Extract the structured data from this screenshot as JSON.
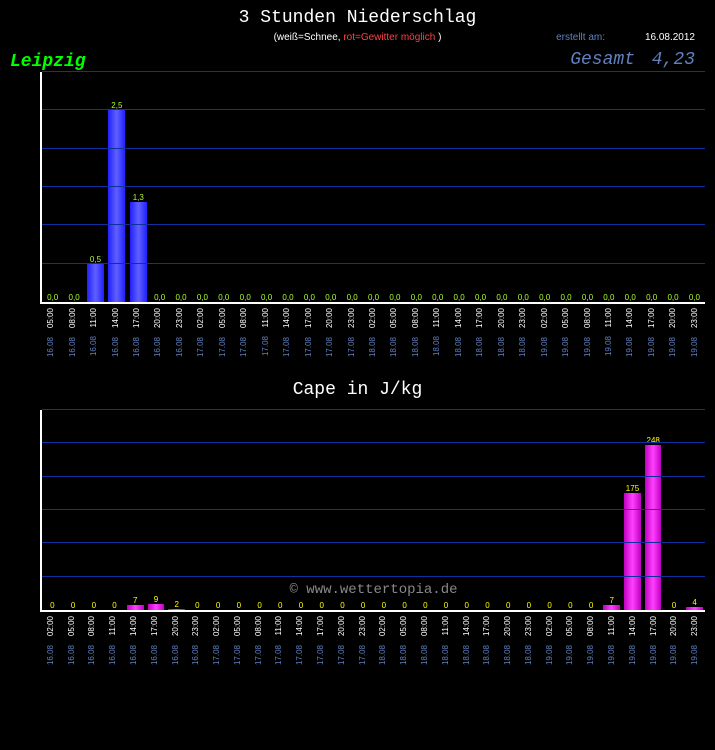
{
  "header": {
    "title": "3 Stunden Niederschlag",
    "subtitle_white": "(weiß=Schnee,",
    "subtitle_red": "rot=Gewitter möglich",
    "subtitle_close": ")",
    "location": "Leipzig",
    "created_label": "erstellt am:",
    "created_date": "16.08.2012",
    "gesamt_label": "Gesamt",
    "gesamt_value": "4,23"
  },
  "chart1": {
    "type": "bar",
    "ylim": [
      0,
      3.0
    ],
    "ytick_step": 0.5,
    "yticks": [
      "0,00",
      "0,50",
      "1,00",
      "1,50",
      "2,00",
      "2,50",
      "3,00"
    ],
    "grid_color": "#1030a0",
    "bar_color": "#3030ff",
    "label_color": "#adff2f",
    "x_times": [
      "05:00",
      "08:00",
      "11:00",
      "14:00",
      "17:00",
      "20:00",
      "23:00",
      "02:00",
      "05:00",
      "08:00",
      "11:00",
      "14:00",
      "17:00",
      "20:00",
      "23:00",
      "02:00",
      "05:00",
      "08:00",
      "11:00",
      "14:00",
      "17:00",
      "20:00",
      "23:00",
      "02:00",
      "05:00",
      "08:00",
      "11:00",
      "14:00",
      "17:00",
      "20:00",
      "23:00"
    ],
    "x_dates": [
      "16.08",
      "16.08",
      "16.08",
      "16.08",
      "16.08",
      "16.08",
      "16.08",
      "17.08",
      "17.08",
      "17.08",
      "17.08",
      "17.08",
      "17.08",
      "17.08",
      "17.08",
      "18.08",
      "18.08",
      "18.08",
      "18.08",
      "18.08",
      "18.08",
      "18.08",
      "18.08",
      "19.08",
      "19.08",
      "19.08",
      "19.08",
      "19.08",
      "19.08",
      "19.08",
      "19.08"
    ],
    "values": [
      0,
      0,
      0.5,
      2.5,
      1.3,
      0,
      0,
      0,
      0,
      0,
      0,
      0,
      0,
      0,
      0,
      0,
      0,
      0,
      0,
      0,
      0,
      0,
      0,
      0,
      0,
      0,
      0,
      0,
      0,
      0,
      0
    ],
    "labels": [
      "0,0",
      "0,0",
      "0,5",
      "2,5",
      "1,3",
      "0,0",
      "0,0",
      "0,0",
      "0,0",
      "0,0",
      "0,0",
      "0,0",
      "0,0",
      "0,0",
      "0,0",
      "0,0",
      "0,0",
      "0,0",
      "0,0",
      "0,0",
      "0,0",
      "0,0",
      "0,0",
      "0,0",
      "0,0",
      "0,0",
      "0,0",
      "0,0",
      "0,0",
      "0,0",
      "0,0"
    ]
  },
  "chart2": {
    "title": "Cape in J/kg",
    "type": "bar",
    "ylim": [
      0,
      300
    ],
    "ytick_step": 50,
    "yticks": [
      "0",
      "50",
      "100",
      "150",
      "200",
      "250",
      "300"
    ],
    "grid_color": "#1030a0",
    "bar_color": "#ff00ff",
    "label_color": "#ffff00",
    "watermark": "© www.wettertopia.de",
    "x_times": [
      "02:00",
      "05:00",
      "08:00",
      "11:00",
      "14:00",
      "17:00",
      "20:00",
      "23:00",
      "02:00",
      "05:00",
      "08:00",
      "11:00",
      "14:00",
      "17:00",
      "20:00",
      "23:00",
      "02:00",
      "05:00",
      "08:00",
      "11:00",
      "14:00",
      "17:00",
      "20:00",
      "23:00",
      "02:00",
      "05:00",
      "08:00",
      "11:00",
      "14:00",
      "17:00",
      "20:00",
      "23:00"
    ],
    "x_dates": [
      "16.08",
      "16.08",
      "16.08",
      "16.08",
      "16.08",
      "16.08",
      "16.08",
      "16.08",
      "17.08",
      "17.08",
      "17.08",
      "17.08",
      "17.08",
      "17.08",
      "17.08",
      "17.08",
      "18.08",
      "18.08",
      "18.08",
      "18.08",
      "18.08",
      "18.08",
      "18.08",
      "18.08",
      "19.08",
      "19.08",
      "19.08",
      "19.08",
      "19.08",
      "19.08",
      "19.08",
      "19.08"
    ],
    "values": [
      0,
      0,
      0,
      0,
      7,
      9,
      2,
      0,
      0,
      0,
      0,
      0,
      0,
      0,
      0,
      0,
      0,
      0,
      0,
      0,
      0,
      0,
      0,
      0,
      0,
      0,
      0,
      7,
      175,
      248,
      0,
      4
    ],
    "labels": [
      "0",
      "0",
      "0",
      "0",
      "7",
      "9",
      "2",
      "0",
      "0",
      "0",
      "0",
      "0",
      "0",
      "0",
      "0",
      "0",
      "0",
      "0",
      "0",
      "0",
      "0",
      "0",
      "0",
      "0",
      "0",
      "0",
      "0",
      "7",
      "175",
      "248",
      "0",
      "4"
    ]
  }
}
